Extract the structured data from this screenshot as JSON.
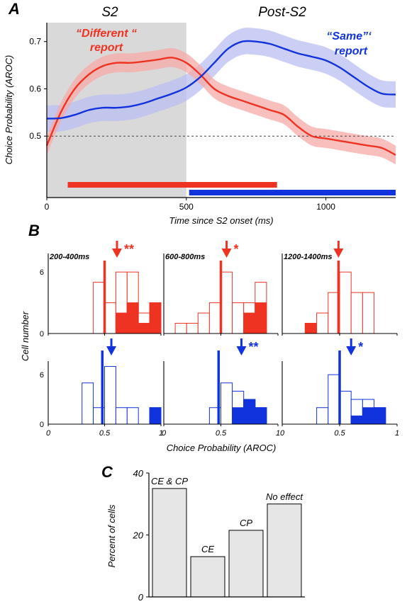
{
  "colors": {
    "red": "#ee3322",
    "blue": "#1133dd",
    "red_band": "#f6aaa6",
    "blue_band": "#b9bdf2",
    "shade": "#d9d9d9",
    "bar_fill": "#e6e6e6",
    "axis": "#000000"
  },
  "panel_letters": {
    "a": "A",
    "b": "B",
    "c": "C"
  },
  "chart_data": [
    {
      "id": "A",
      "type": "line",
      "ylabel": "Choice Probability (AROC)",
      "xlabel": "Time since S2 onset  (ms)",
      "xlim": [
        0,
        1250
      ],
      "ylim": [
        0.37,
        0.74
      ],
      "xticks": [
        0,
        500,
        1000
      ],
      "xtick_labels": [
        "0",
        "500",
        "1000"
      ],
      "yticks": [
        0.5,
        0.6,
        0.7
      ],
      "ytick_labels": [
        "0.5",
        "0.6",
        "0.7"
      ],
      "shaded_region": {
        "x0": 0,
        "x1": 500,
        "label": "S2"
      },
      "post_region_label": "Post-S2",
      "reference_line": 0.5,
      "series": [
        {
          "color": "red",
          "label_lines": [
            "“Different “",
            "report"
          ],
          "x": [
            0,
            50,
            100,
            150,
            200,
            250,
            300,
            350,
            400,
            450,
            500,
            550,
            600,
            650,
            700,
            750,
            800,
            850,
            900,
            950,
            1000,
            1050,
            1100,
            1150,
            1200,
            1250
          ],
          "y": [
            0.48,
            0.55,
            0.6,
            0.63,
            0.648,
            0.655,
            0.655,
            0.658,
            0.662,
            0.666,
            0.655,
            0.63,
            0.6,
            0.585,
            0.575,
            0.565,
            0.555,
            0.545,
            0.52,
            0.5,
            0.495,
            0.49,
            0.485,
            0.48,
            0.475,
            0.46
          ],
          "band": 0.02
        },
        {
          "color": "blue",
          "label_lines": [
            "“Same”‘",
            "report"
          ],
          "x": [
            0,
            50,
            100,
            150,
            200,
            250,
            300,
            350,
            400,
            450,
            500,
            550,
            600,
            650,
            700,
            750,
            800,
            850,
            900,
            950,
            1000,
            1050,
            1100,
            1150,
            1200,
            1250
          ],
          "y": [
            0.537,
            0.538,
            0.545,
            0.555,
            0.56,
            0.56,
            0.563,
            0.57,
            0.58,
            0.59,
            0.603,
            0.625,
            0.655,
            0.685,
            0.7,
            0.7,
            0.695,
            0.685,
            0.675,
            0.668,
            0.66,
            0.645,
            0.625,
            0.605,
            0.59,
            0.588
          ],
          "band": 0.028
        }
      ],
      "significance_bars": [
        {
          "color": "red",
          "x0": 75,
          "x1": 825
        },
        {
          "color": "blue",
          "x0": 510,
          "x1": 1250
        }
      ]
    },
    {
      "id": "B",
      "type": "bar",
      "ylabel": "Cell number",
      "xlabel": "Choice Probability (AROC)",
      "xlim": [
        0,
        1
      ],
      "xtick_labels": [
        "0",
        "0.5",
        "1"
      ],
      "ytick_labels": [
        "0",
        "6"
      ],
      "ylim": [
        0,
        8.5
      ],
      "bin_width": 0.1,
      "panels": [
        {
          "row": "top",
          "col": 0,
          "color": "red",
          "title": "200-400ms",
          "stars": "**",
          "arrow_x": 0.61,
          "line_x": 0.5,
          "bins": [
            0.3,
            0.4,
            0.5,
            0.6,
            0.7,
            0.8,
            0.9
          ],
          "total": [
            0,
            5,
            3,
            6,
            6,
            2,
            3
          ],
          "filled": [
            0,
            0,
            0,
            2,
            3,
            1,
            3
          ]
        },
        {
          "row": "top",
          "col": 1,
          "color": "red",
          "title": "600-800ms",
          "stars": "*",
          "arrow_x": 0.55,
          "line_x": 0.5,
          "bins": [
            0.1,
            0.2,
            0.3,
            0.4,
            0.5,
            0.6,
            0.7,
            0.8
          ],
          "total": [
            1,
            1,
            2,
            3,
            6,
            3,
            3,
            5
          ],
          "filled": [
            0,
            0,
            0,
            0,
            0,
            0,
            2,
            3
          ]
        },
        {
          "row": "top",
          "col": 2,
          "color": "red",
          "title": "1200-1400ms",
          "stars": "",
          "arrow_x": 0.49,
          "line_x": 0.49,
          "bins": [
            0.2,
            0.3,
            0.4,
            0.5,
            0.6,
            0.7
          ],
          "total": [
            1,
            2,
            4,
            6,
            4,
            4
          ],
          "filled": [
            1,
            0,
            0,
            0,
            0,
            0
          ]
        },
        {
          "row": "bottom",
          "col": 0,
          "color": "blue",
          "title": "",
          "stars": "",
          "arrow_x": 0.56,
          "line_x": 0.48,
          "bins": [
            0.3,
            0.4,
            0.5,
            0.6,
            0.7,
            0.9
          ],
          "total": [
            5,
            2,
            7,
            2,
            2,
            2
          ],
          "filled": [
            0,
            0,
            0,
            0,
            0,
            2
          ]
        },
        {
          "row": "bottom",
          "col": 1,
          "color": "blue",
          "title": "",
          "stars": "**",
          "arrow_x": 0.68,
          "line_x": 0.48,
          "bins": [
            0.4,
            0.5,
            0.6,
            0.7,
            0.8
          ],
          "total": [
            2,
            5,
            4,
            3,
            2
          ],
          "filled": [
            0,
            0,
            2,
            3,
            2
          ]
        },
        {
          "row": "bottom",
          "col": 2,
          "color": "blue",
          "title": "",
          "stars": "*",
          "arrow_x": 0.6,
          "line_x": 0.5,
          "bins": [
            0.3,
            0.4,
            0.5,
            0.6,
            0.7,
            0.8
          ],
          "total": [
            2,
            6,
            4,
            3,
            3,
            2
          ],
          "filled": [
            0,
            0,
            0,
            1,
            2,
            2
          ]
        }
      ]
    },
    {
      "id": "C",
      "type": "bar",
      "ylabel": "Percent of cells",
      "ylim": [
        0,
        40
      ],
      "ytick_labels": [
        "0",
        "20",
        "40"
      ],
      "categories": [
        "CE & CP",
        "CE",
        "CP",
        "No  effect"
      ],
      "values": [
        35,
        13,
        21.5,
        30
      ]
    }
  ]
}
